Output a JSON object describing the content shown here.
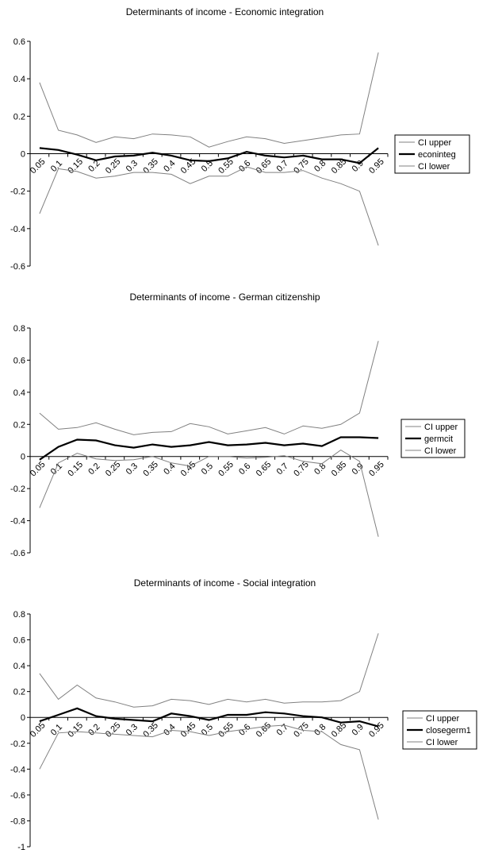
{
  "chart_data": [
    {
      "type": "line",
      "title": "Determinants of income - Economic integration",
      "xlabel": "",
      "ylabel": "",
      "x": [
        "0.05",
        "0.1",
        "0.15",
        "0.2",
        "0.25",
        "0.3",
        "0.35",
        "0.4",
        "0.45",
        "0.5",
        "0.55",
        "0.6",
        "0.65",
        "0.7",
        "0.75",
        "0.8",
        "0.85",
        "0.9",
        "0.95"
      ],
      "yticks": [
        "0.6",
        "0.4",
        "0.2",
        "0",
        "-0.2",
        "-0.4",
        "-0.6"
      ],
      "ylim": [
        -0.6,
        0.6
      ],
      "grid": false,
      "legend_position": "right",
      "series": [
        {
          "name": "CI upper",
          "color": "#808080",
          "values": [
            0.38,
            0.125,
            0.1,
            0.06,
            0.09,
            0.08,
            0.105,
            0.1,
            0.09,
            0.035,
            0.065,
            0.09,
            0.08,
            0.055,
            0.07,
            0.085,
            0.1,
            0.105,
            0.54
          ]
        },
        {
          "name": "econinteg",
          "color": "#000000",
          "values": [
            0.03,
            0.02,
            -0.005,
            -0.035,
            -0.015,
            -0.01,
            0.005,
            -0.01,
            -0.035,
            -0.04,
            -0.025,
            0.01,
            -0.01,
            -0.02,
            -0.01,
            -0.03,
            -0.03,
            -0.05,
            0.03
          ]
        },
        {
          "name": "CI lower",
          "color": "#808080",
          "values": [
            -0.32,
            -0.08,
            -0.095,
            -0.13,
            -0.12,
            -0.1,
            -0.1,
            -0.11,
            -0.16,
            -0.12,
            -0.12,
            -0.07,
            -0.1,
            -0.1,
            -0.09,
            -0.13,
            -0.16,
            -0.2,
            -0.49
          ]
        }
      ]
    },
    {
      "type": "line",
      "title": "Determinants of income - German citizenship",
      "xlabel": "",
      "ylabel": "",
      "x": [
        "0.05",
        "0.1",
        "0.15",
        "0.2",
        "0.25",
        "0.3",
        "0.35",
        "0.4",
        "0.45",
        "0.5",
        "0.55",
        "0.6",
        "0.65",
        "0.7",
        "0.75",
        "0.8",
        "0.85",
        "0.9",
        "0.95"
      ],
      "yticks": [
        "0.8",
        "0.6",
        "0.4",
        "0.2",
        "0",
        "-0.2",
        "-0.4",
        "-0.6"
      ],
      "ylim": [
        -0.6,
        0.8
      ],
      "grid": false,
      "legend_position": "right",
      "series": [
        {
          "name": "CI upper",
          "color": "#808080",
          "values": [
            0.27,
            0.17,
            0.18,
            0.21,
            0.17,
            0.135,
            0.15,
            0.155,
            0.205,
            0.185,
            0.14,
            0.16,
            0.18,
            0.14,
            0.19,
            0.175,
            0.2,
            0.27,
            0.72
          ]
        },
        {
          "name": "germcit",
          "color": "#000000",
          "values": [
            -0.02,
            0.06,
            0.105,
            0.1,
            0.07,
            0.055,
            0.075,
            0.06,
            0.07,
            0.09,
            0.07,
            0.075,
            0.085,
            0.07,
            0.08,
            0.065,
            0.12,
            0.12,
            0.115
          ]
        },
        {
          "name": "CI lower",
          "color": "#808080",
          "values": [
            -0.32,
            -0.04,
            0.02,
            -0.015,
            -0.025,
            -0.02,
            0.0,
            -0.04,
            -0.06,
            0.0,
            0.0,
            -0.01,
            -0.005,
            0.005,
            -0.03,
            -0.045,
            0.04,
            -0.03,
            -0.5
          ]
        }
      ]
    },
    {
      "type": "line",
      "title": "Determinants of income - Social integration",
      "xlabel": "",
      "ylabel": "",
      "x": [
        "0.05",
        "0.1",
        "0.15",
        "0.2",
        "0.25",
        "0.3",
        "0.35",
        "0.4",
        "0.45",
        "0.5",
        "0.55",
        "0.6",
        "0.65",
        "0.7",
        "0.75",
        "0.8",
        "0.85",
        "0.9",
        "0.95"
      ],
      "yticks": [
        "0.8",
        "0.6",
        "0.4",
        "0.2",
        "0",
        "-0.2",
        "-0.4",
        "-0.6",
        "-0.8",
        "-1"
      ],
      "ylim": [
        -1,
        0.8
      ],
      "grid": false,
      "legend_position": "right",
      "series": [
        {
          "name": "CI upper",
          "color": "#808080",
          "values": [
            0.34,
            0.14,
            0.25,
            0.15,
            0.12,
            0.08,
            0.09,
            0.14,
            0.13,
            0.1,
            0.14,
            0.12,
            0.14,
            0.11,
            0.12,
            0.12,
            0.13,
            0.2,
            0.65
          ]
        },
        {
          "name": "closegerm1",
          "color": "#000000",
          "values": [
            -0.03,
            0.02,
            0.07,
            0.01,
            -0.01,
            -0.02,
            -0.03,
            0.03,
            0.01,
            -0.02,
            0.02,
            0.02,
            0.04,
            0.03,
            0.01,
            0.0,
            -0.04,
            -0.03,
            -0.07
          ]
        },
        {
          "name": "CI lower",
          "color": "#808080",
          "values": [
            -0.4,
            -0.12,
            -0.11,
            -0.12,
            -0.13,
            -0.14,
            -0.15,
            -0.1,
            -0.11,
            -0.14,
            -0.11,
            -0.09,
            -0.07,
            -0.06,
            -0.1,
            -0.11,
            -0.21,
            -0.25,
            -0.79
          ]
        }
      ]
    }
  ]
}
